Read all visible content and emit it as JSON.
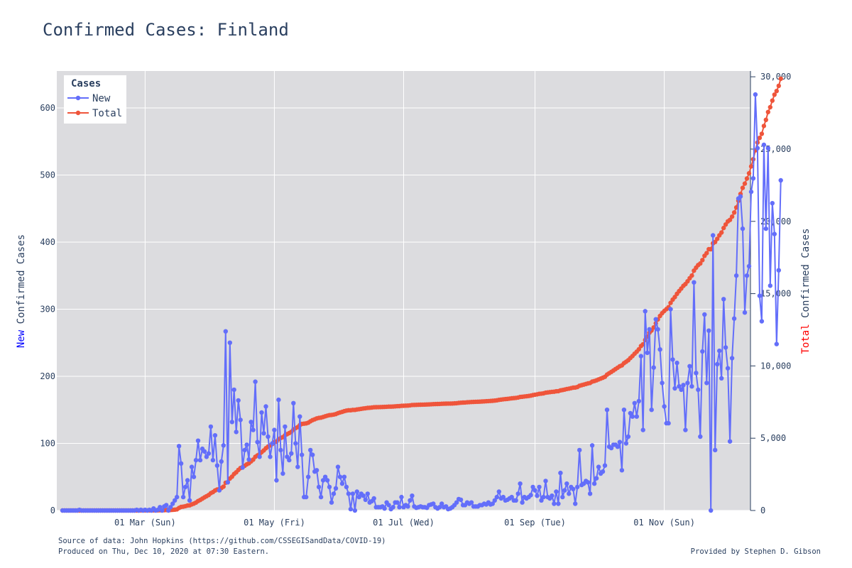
{
  "chart_data": {
    "type": "line",
    "title": "Confirmed Cases: Finland",
    "ylabel_left_prefix": "New",
    "ylabel_left_suffix": " Confirmed Cases",
    "ylabel_right_prefix": "Total",
    "ylabel_right_suffix": " Confirmed Cases",
    "x_start": "2020-01-22",
    "x_end": "2020-12-09",
    "x_ticks": [
      {
        "date": "2020-03-01",
        "label": "01 Mar (Sun)"
      },
      {
        "date": "2020-05-01",
        "label": "01 May (Fri)"
      },
      {
        "date": "2020-07-01",
        "label": "01 Jul (Wed)"
      },
      {
        "date": "2020-09-01",
        "label": "01 Sep (Tue)"
      },
      {
        "date": "2020-11-01",
        "label": "01 Nov (Sun)"
      }
    ],
    "y_left_range": [
      0,
      655
    ],
    "y_left_ticks": [
      0,
      100,
      200,
      300,
      400,
      500,
      600
    ],
    "y_right_range": [
      0,
      30400
    ],
    "y_right_ticks": [
      0,
      5000,
      10000,
      15000,
      20000,
      25000,
      30000
    ],
    "y_right_tick_labels": [
      "0",
      "5,000",
      "10,000",
      "15,000",
      "20,000",
      "25,000",
      "30,000"
    ],
    "legend_title": "Cases",
    "legend_position": "top-left",
    "grid": true,
    "colors": {
      "new": "#636efa",
      "total": "#ef553b",
      "plot_bg": "#dcdcdf",
      "grid": "#ffffff",
      "text": "#2a3f5f",
      "new_label": "#0000ff",
      "total_label": "#ff0000"
    },
    "series": [
      {
        "name": "New",
        "axis": "left",
        "values": [
          0,
          0,
          0,
          0,
          0,
          0,
          0,
          0,
          1,
          0,
          0,
          0,
          0,
          0,
          0,
          0,
          0,
          0,
          0,
          0,
          0,
          0,
          0,
          0,
          0,
          0,
          0,
          0,
          0,
          0,
          0,
          0,
          0,
          0,
          0,
          1,
          0,
          1,
          0,
          1,
          0,
          1,
          0,
          3,
          0,
          1,
          5,
          0,
          6,
          8,
          0,
          5,
          10,
          15,
          20,
          96,
          70,
          20,
          35,
          45,
          15,
          65,
          50,
          75,
          104,
          75,
          92,
          88,
          80,
          85,
          125,
          75,
          112,
          67,
          30,
          73,
          97,
          267,
          42,
          250,
          132,
          180,
          117,
          164,
          135,
          64,
          90,
          98,
          76,
          132,
          120,
          192,
          102,
          80,
          146,
          115,
          155,
          110,
          80,
          100,
          120,
          45,
          165,
          90,
          55,
          125,
          80,
          75,
          85,
          160,
          100,
          65,
          140,
          83,
          20,
          20,
          50,
          90,
          83,
          58,
          60,
          35,
          20,
          45,
          50,
          45,
          35,
          12,
          25,
          33,
          65,
          50,
          40,
          50,
          35,
          25,
          2,
          25,
          0,
          28,
          20,
          25,
          22,
          16,
          25,
          12,
          14,
          18,
          5,
          5,
          5,
          6,
          3,
          12,
          8,
          2,
          5,
          12,
          12,
          5,
          20,
          5,
          8,
          6,
          15,
          22,
          6,
          4,
          5,
          6,
          5,
          5,
          4,
          8,
          9,
          10,
          5,
          3,
          5,
          10,
          5,
          6,
          2,
          3,
          5,
          8,
          12,
          17,
          16,
          8,
          8,
          12,
          10,
          12,
          6,
          6,
          6,
          8,
          8,
          10,
          9,
          12,
          9,
          10,
          15,
          20,
          28,
          18,
          20,
          15,
          16,
          18,
          20,
          15,
          15,
          25,
          40,
          12,
          20,
          18,
          20,
          23,
          35,
          30,
          22,
          35,
          15,
          20,
          44,
          20,
          18,
          22,
          10,
          28,
          10,
          56,
          20,
          30,
          40,
          25,
          35,
          32,
          10,
          35,
          90,
          38,
          40,
          44,
          42,
          25,
          97,
          40,
          48,
          65,
          55,
          58,
          67,
          150,
          95,
          93,
          98,
          98,
          95,
          102,
          60,
          150,
          100,
          110,
          145,
          140,
          160,
          140,
          163,
          230,
          120,
          297,
          235,
          270,
          150,
          213,
          285,
          270,
          240,
          190,
          155,
          130,
          130,
          300,
          225,
          182,
          220,
          185,
          180,
          187,
          120,
          190,
          215,
          185,
          340,
          205,
          180,
          110,
          237,
          292,
          190,
          268,
          0,
          410,
          90,
          218,
          238,
          197,
          315,
          243,
          212,
          103,
          227,
          286,
          350,
          465,
          468,
          420,
          295,
          350,
          364,
          475,
          495,
          620,
          540,
          320,
          282,
          545,
          420,
          540,
          335,
          458,
          412,
          248,
          358,
          492
        ]
      },
      {
        "name": "Total",
        "axis": "right",
        "values": [
          0,
          0,
          0,
          0,
          0,
          0,
          0,
          0,
          1,
          1,
          1,
          1,
          1,
          1,
          1,
          1,
          1,
          1,
          1,
          1,
          1,
          1,
          1,
          1,
          1,
          1,
          1,
          1,
          1,
          1,
          1,
          1,
          1,
          1,
          1,
          2,
          2,
          3,
          3,
          4,
          4,
          5,
          5,
          8,
          8,
          9,
          14,
          14,
          20,
          28,
          28,
          33,
          43,
          58,
          78,
          174,
          244,
          264,
          299,
          344,
          359,
          424,
          474,
          549,
          653,
          728,
          820,
          908,
          988,
          1073,
          1198,
          1273,
          1385,
          1452,
          1482,
          1555,
          1652,
          1919,
          1961,
          2211,
          2343,
          2523,
          2640,
          2804,
          2939,
          3003,
          3093,
          3191,
          3267,
          3399,
          3519,
          3711,
          3813,
          3893,
          4039,
          4154,
          4309,
          4419,
          4499,
          4599,
          4719,
          4764,
          4929,
          5019,
          5074,
          5199,
          5279,
          5354,
          5439,
          5599,
          5699,
          5764,
          5904,
          5987,
          6007,
          6027,
          6077,
          6167,
          6250,
          6308,
          6368,
          6403,
          6423,
          6468,
          6518,
          6563,
          6598,
          6610,
          6635,
          6668,
          6733,
          6783,
          6823,
          6873,
          6908,
          6933,
          6935,
          6960,
          6960,
          6988,
          7008,
          7033,
          7055,
          7071,
          7096,
          7108,
          7122,
          7140,
          7145,
          7150,
          7155,
          7161,
          7164,
          7176,
          7184,
          7186,
          7191,
          7203,
          7215,
          7220,
          7240,
          7245,
          7253,
          7259,
          7274,
          7296,
          7302,
          7306,
          7311,
          7317,
          7322,
          7327,
          7331,
          7339,
          7348,
          7358,
          7363,
          7366,
          7371,
          7381,
          7386,
          7392,
          7394,
          7397,
          7402,
          7410,
          7422,
          7439,
          7455,
          7463,
          7471,
          7483,
          7493,
          7505,
          7511,
          7517,
          7523,
          7531,
          7539,
          7549,
          7558,
          7570,
          7579,
          7589,
          7604,
          7624,
          7652,
          7670,
          7690,
          7705,
          7721,
          7739,
          7759,
          7774,
          7789,
          7814,
          7854,
          7866,
          7886,
          7904,
          7924,
          7947,
          7982,
          8012,
          8034,
          8069,
          8084,
          8104,
          8148,
          8168,
          8186,
          8208,
          8218,
          8246,
          8256,
          8312,
          8332,
          8362,
          8402,
          8427,
          8462,
          8494,
          8504,
          8539,
          8629,
          8667,
          8707,
          8751,
          8793,
          8818,
          8915,
          8955,
          9003,
          9068,
          9123,
          9181,
          9248,
          9398,
          9493,
          9586,
          9684,
          9782,
          9877,
          9979,
          10039,
          10189,
          10289,
          10399,
          10544,
          10684,
          10844,
          10984,
          11147,
          11377,
          11497,
          11794,
          12029,
          12299,
          12449,
          12662,
          12947,
          13217,
          13457,
          13647,
          13802,
          13932,
          14062,
          14362,
          14587,
          14769,
          14989,
          15174,
          15354,
          15541,
          15661,
          15851,
          16066,
          16251,
          16591,
          16796,
          16976,
          17086,
          17323,
          17615,
          17805,
          18073,
          18073,
          18483,
          18573,
          18791,
          19029,
          19226,
          19541,
          19784,
          19996,
          20099,
          20326,
          20612,
          20962,
          21427,
          21895,
          22315,
          22610,
          22960,
          23324,
          23799,
          24294,
          24914,
          25454,
          25774,
          26056,
          26601,
          27021,
          27561,
          27896,
          28354,
          28766,
          29014,
          29372,
          29864
        ]
      }
    ]
  },
  "footer": {
    "source": "Source of data: John Hopkins (https://github.com/CSSEGISandData/COVID-19)",
    "produced": "Produced on Thu, Dec 10, 2020 at 07:30 Eastern.",
    "credit": "Provided by Stephen D. Gibson"
  }
}
